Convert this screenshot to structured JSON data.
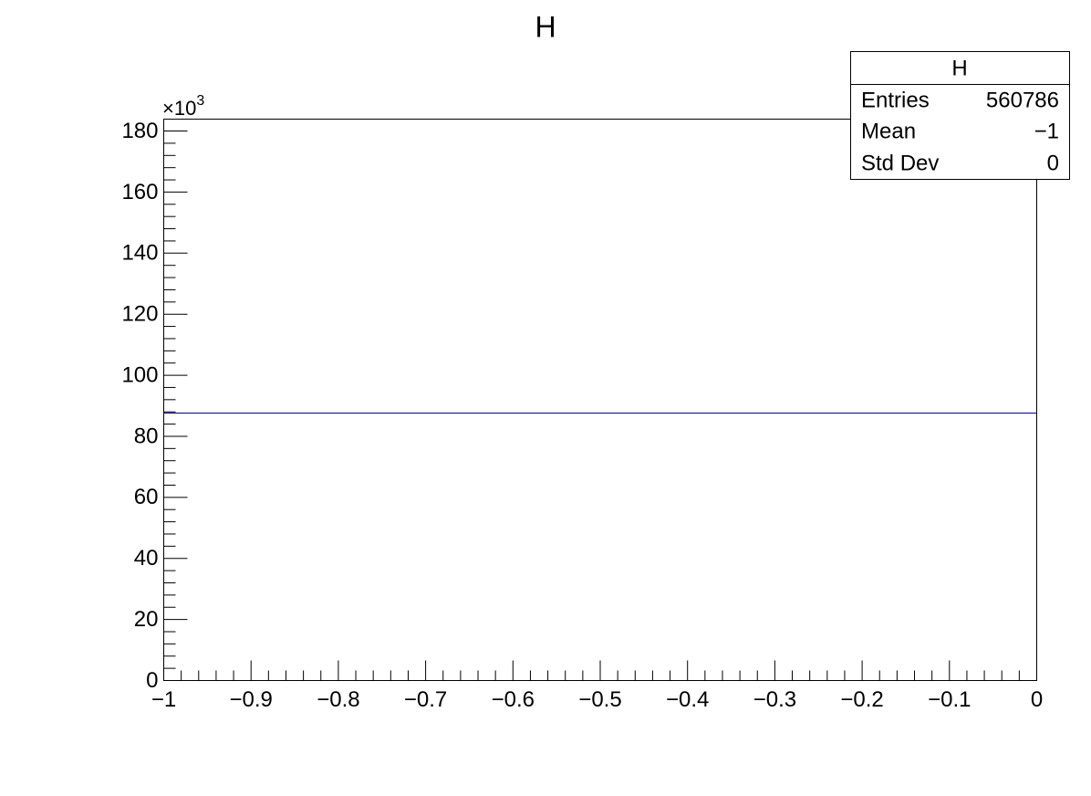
{
  "chart_data": {
    "type": "histogram",
    "title": "H",
    "bins": [
      -1,
      0
    ],
    "values": [
      87.6
    ],
    "color": "#000099",
    "xlim": [
      -1,
      0
    ],
    "xticks": [
      {
        "value": -1,
        "label": "−1"
      },
      {
        "value": -0.9,
        "label": "−0.9"
      },
      {
        "value": -0.8,
        "label": "−0.8"
      },
      {
        "value": -0.7,
        "label": "−0.7"
      },
      {
        "value": -0.6,
        "label": "−0.6"
      },
      {
        "value": -0.5,
        "label": "−0.5"
      },
      {
        "value": -0.4,
        "label": "−0.4"
      },
      {
        "value": -0.3,
        "label": "−0.3"
      },
      {
        "value": -0.2,
        "label": "−0.2"
      },
      {
        "value": -0.1,
        "label": "−0.1"
      },
      0
    ],
    "ylim": [
      0,
      183.9
    ],
    "yticks": [
      0,
      20,
      40,
      60,
      80,
      100,
      120,
      140,
      160,
      180
    ],
    "y_multiplier": {
      "base": "×10",
      "exponent": "3"
    },
    "stats": {
      "title": "H",
      "rows": [
        [
          "Entries",
          560786
        ],
        [
          "Mean",
          "−1"
        ],
        [
          "Std Dev",
          0
        ]
      ]
    }
  }
}
